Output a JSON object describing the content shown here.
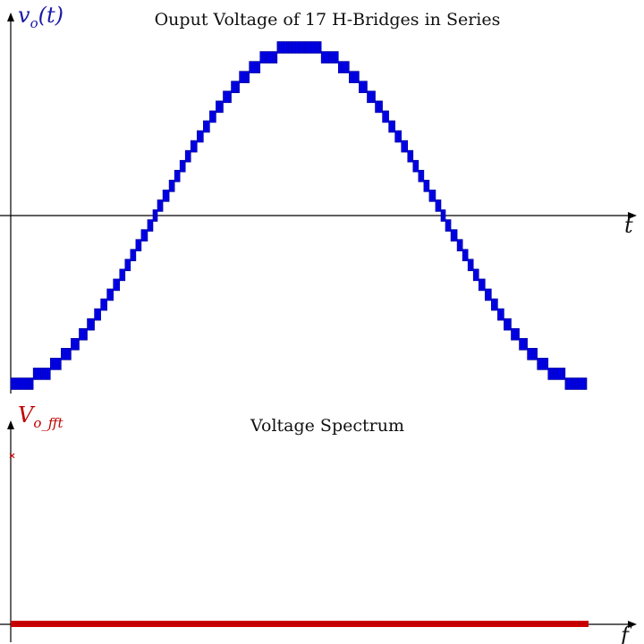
{
  "colors": {
    "voltage": "#0000ee",
    "voltage_edge": "#00008b",
    "spectrum": "#cc0000",
    "axis": "#000000"
  },
  "chart_data": [
    {
      "type": "line",
      "title": "Ouput Voltage of 17 H-Bridges in Series",
      "ylabel": {
        "base": "v",
        "sub": "o",
        "suffix": "(t)"
      },
      "xlabel": "t",
      "levels": 17,
      "description_values": "staircase approximation of -cos over one period, 35 levels from -17 to +17",
      "series": [
        {
          "x": [
            0.0,
            1.0
          ],
          "y_min": -17,
          "y_max": 17,
          "shape": "stepped"
        }
      ],
      "xlim": [
        0.0,
        1.0
      ],
      "ylim": [
        -17,
        17
      ]
    },
    {
      "type": "line",
      "title": "Voltage Spectrum",
      "ylabel": {
        "base": "V",
        "sub": "o_fft"
      },
      "xlabel": "f",
      "series": [
        {
          "peak_marker": "x",
          "baseline": 0
        }
      ]
    }
  ]
}
